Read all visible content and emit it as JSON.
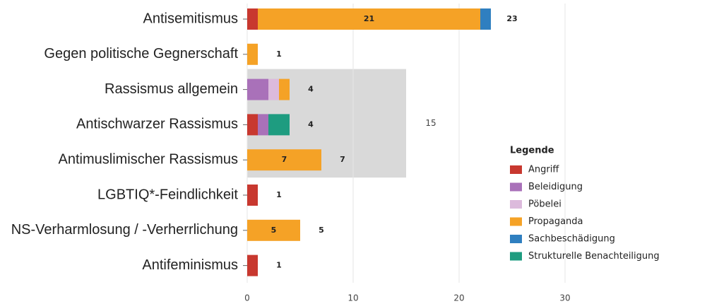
{
  "chart_data": {
    "type": "stacked-barh",
    "categories": [
      "Antisemitismus",
      "Gegen politische Gegnerschaft",
      "Rassismus allgemein",
      "Antischwarzer Rassismus",
      "Antimuslimischer Rassismus",
      "LGBTIQ*-Feindlichkeit",
      "NS-Verharmlosung / -Verherrlichung",
      "Antifeminismus"
    ],
    "series": [
      {
        "name": "Angriff",
        "color": "#c8382f",
        "values": [
          1,
          null,
          null,
          1,
          null,
          1,
          null,
          1
        ]
      },
      {
        "name": "Beleidigung",
        "color": "#a971b9",
        "values": [
          null,
          null,
          2,
          1,
          null,
          null,
          null,
          null
        ]
      },
      {
        "name": "Pöbelei",
        "color": "#dcbadc",
        "values": [
          null,
          null,
          1,
          null,
          null,
          null,
          null,
          null
        ]
      },
      {
        "name": "Propaganda",
        "color": "#f5a226",
        "values": [
          21,
          1,
          1,
          null,
          7,
          null,
          5,
          null
        ],
        "value_labels": [
          "21",
          null,
          null,
          null,
          "7",
          null,
          "5",
          null
        ]
      },
      {
        "name": "Sachbeschädigung",
        "color": "#2f7fc0",
        "values": [
          1,
          null,
          null,
          null,
          null,
          null,
          null,
          null
        ]
      },
      {
        "name": "Strukturelle Benachteiligung",
        "color": "#1e9c80",
        "values": [
          null,
          null,
          null,
          2,
          null,
          null,
          null,
          null
        ]
      }
    ],
    "totals": [
      23,
      1,
      4,
      4,
      7,
      1,
      5,
      1
    ],
    "highlight": {
      "categories": [
        "Rassismus allgemein",
        "Antischwarzer Rassismus",
        "Antimuslimischer Rassismus"
      ],
      "value": 15,
      "color": "#d9d9d9"
    },
    "legend_title": "Legende",
    "legend": "right",
    "xlim": [
      0,
      33
    ],
    "xticks": [
      0,
      10,
      20,
      30
    ],
    "grid": true
  }
}
